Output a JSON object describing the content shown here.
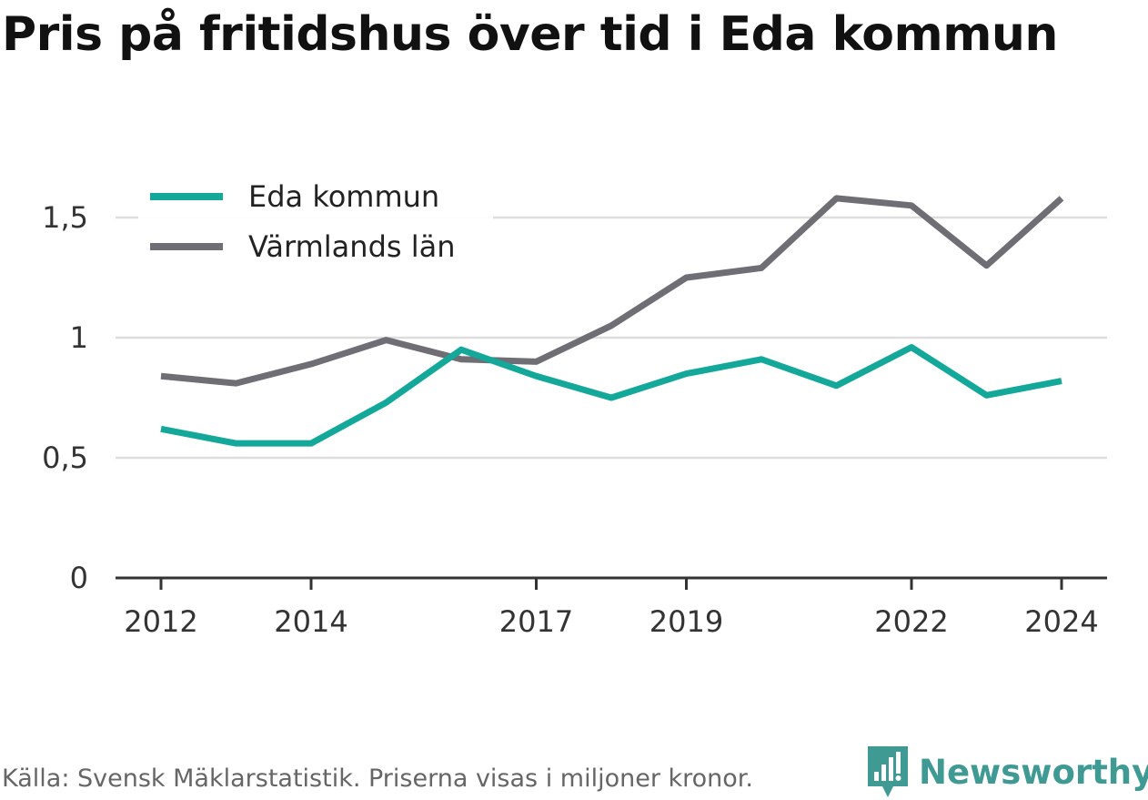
{
  "title": "Pris på fritidshus över tid i Eda kommun",
  "source": "Källa: Svensk Mäklarstatistik. Priserna visas i miljoner kronor.",
  "brand": "Newsworthy",
  "colors": {
    "eda": "#13a89a",
    "varmland": "#6f6e74",
    "brand": "#3e9a92",
    "grid": "#dddddd",
    "axis": "#333333"
  },
  "chart_data": {
    "type": "line",
    "title": "Pris på fritidshus över tid i Eda kommun",
    "x": [
      2012,
      2013,
      2014,
      2015,
      2016,
      2017,
      2018,
      2019,
      2020,
      2021,
      2022,
      2023,
      2024
    ],
    "x_tick_labels": [
      "2012",
      "2014",
      "2017",
      "2019",
      "2022",
      "2024"
    ],
    "x_ticks": [
      2012,
      2014,
      2017,
      2019,
      2022,
      2024
    ],
    "y_ticks": [
      0,
      0.5,
      1,
      1.5
    ],
    "y_tick_labels": [
      "0",
      "0,5",
      "1",
      "1,5"
    ],
    "ylim": [
      0,
      1.65
    ],
    "grid": true,
    "legend_position": "top-left",
    "series": [
      {
        "name": "Eda kommun",
        "color": "#13a89a",
        "values": [
          0.62,
          0.56,
          0.56,
          0.73,
          0.95,
          0.84,
          0.75,
          0.85,
          0.91,
          0.8,
          0.96,
          0.76,
          0.82
        ]
      },
      {
        "name": "Värmlands län",
        "color": "#6f6e74",
        "values": [
          0.84,
          0.81,
          0.89,
          0.99,
          0.91,
          0.9,
          1.05,
          1.25,
          1.29,
          1.58,
          1.55,
          1.3,
          1.58
        ]
      }
    ]
  }
}
